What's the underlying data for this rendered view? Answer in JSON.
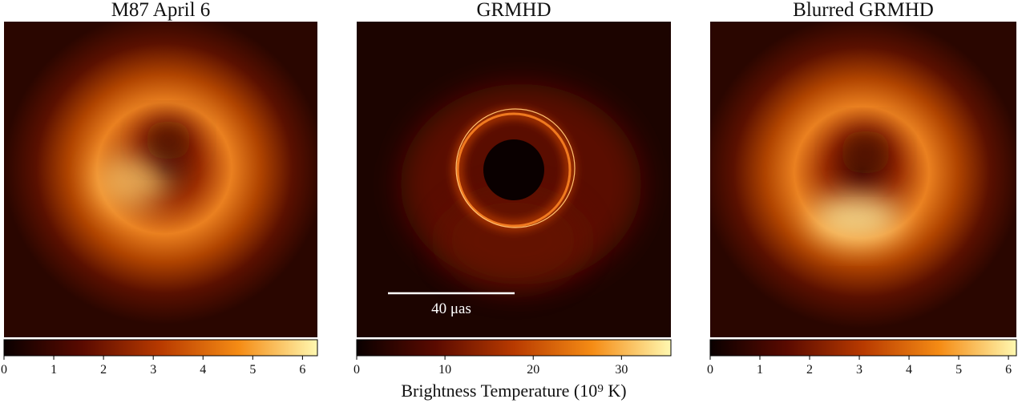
{
  "chart_data": [
    {
      "type": "image",
      "title": "M87 April 6",
      "clim": [
        0,
        6.3
      ],
      "cticks": [
        0,
        1,
        2,
        3,
        4,
        5,
        6
      ]
    },
    {
      "type": "image",
      "title": "GRMHD",
      "clim": [
        0,
        35.6
      ],
      "cticks": [
        0,
        10,
        20,
        30
      ],
      "annotation": "40 μas",
      "colorbar_label": "Brightness Temperature (10⁹ K)"
    },
    {
      "type": "image",
      "title": "Blurred GRMHD",
      "clim": [
        0,
        6.16
      ],
      "cticks": [
        0,
        1,
        2,
        3,
        4,
        5,
        6
      ]
    }
  ]
}
